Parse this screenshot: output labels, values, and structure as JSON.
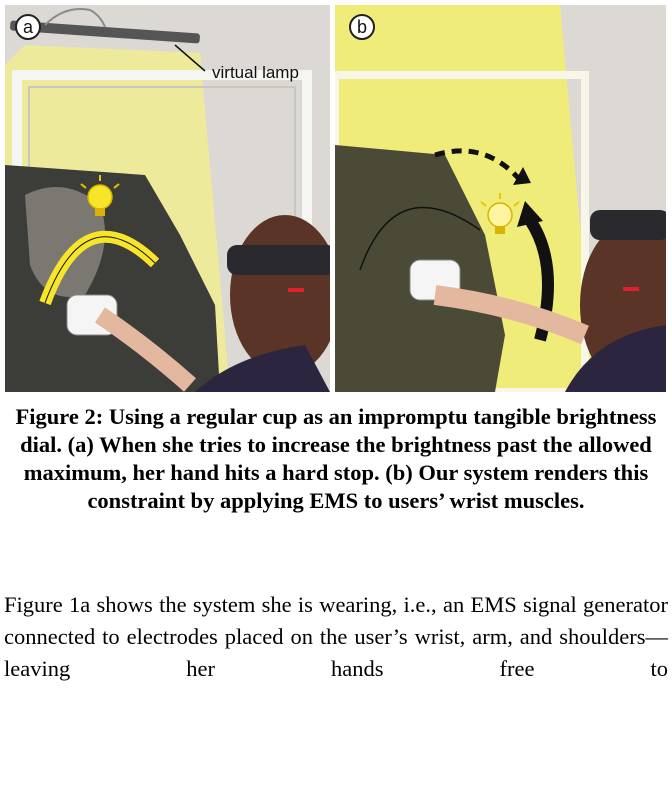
{
  "figure": {
    "panel_a_label": "a",
    "panel_b_label": "b",
    "lamp_callout": "virtual lamp",
    "caption": "Figure 2: Using a regular cup as an impromptu tangible brightness dial. (a) When she tries to increase the brightness past the allowed maximum, her hand hits a hard stop. (b) Our system renders this constraint by applying EMS to users’ wrist muscles.",
    "colors": {
      "light_cone": "#f3ef6a",
      "brightness_arc": "#f7e52a",
      "stop_arrow": "#111111",
      "headset": "#2a2a2e"
    },
    "icons": [
      "lightbulb-icon",
      "curved-arrow-icon",
      "dashed-arrow-icon"
    ]
  },
  "body": {
    "paragraph": "Figure 1a shows the system she is wearing, i.e., an EMS signal generator connected to electrodes placed on the user’s wrist, arm, and shoulders—leaving her hands free to"
  }
}
